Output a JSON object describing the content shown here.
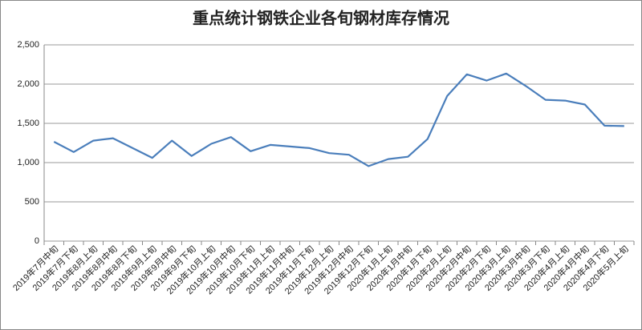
{
  "chart_data": {
    "type": "line",
    "title": "重点统计钢铁企业各旬钢材库存情况",
    "categories": [
      "2019年7月中旬",
      "2019年7月下旬",
      "2019年8月上旬",
      "2019年8月中旬",
      "2019年8月下旬",
      "2019年9月上旬",
      "2019年9月中旬",
      "2019年9月下旬",
      "2019年10月上旬",
      "2019年10月中旬",
      "2019年10月下旬",
      "2019年11月上旬",
      "2019年11月中旬",
      "2019年11月下旬",
      "2019年12月上旬",
      "2019年12月中旬",
      "2019年12月下旬",
      "2020年1月上旬",
      "2020年1月中旬",
      "2020年1月下旬",
      "2020年2月上旬",
      "2020年2月中旬",
      "2020年2月下旬",
      "2020年3月上旬",
      "2020年3月中旬",
      "2020年3月下旬",
      "2020年4月上旬",
      "2020年4月中旬",
      "2020年4月下旬",
      "2020年5月上旬"
    ],
    "values": [
      1265,
      1135,
      1280,
      1310,
      1185,
      1060,
      1280,
      1085,
      1240,
      1325,
      1145,
      1225,
      1205,
      1185,
      1120,
      1100,
      955,
      1045,
      1075,
      1300,
      1850,
      2125,
      2045,
      2135,
      1975,
      1800,
      1790,
      1740,
      1470,
      1465
    ],
    "color": "#4a7ebb",
    "ylim": [
      0,
      2500
    ],
    "yticks": [
      0,
      500,
      {
        "value": 1000,
        "label": "1,000"
      },
      {
        "value": 1500,
        "label": "1,500"
      },
      {
        "value": 2000,
        "label": "2,000"
      },
      {
        "value": 2500,
        "label": "2,500"
      }
    ],
    "grid": true
  }
}
